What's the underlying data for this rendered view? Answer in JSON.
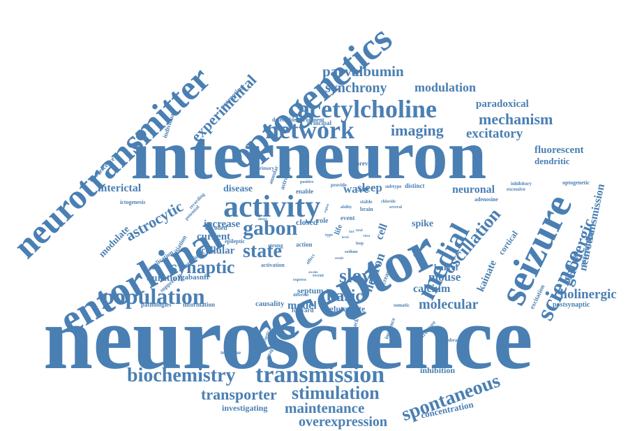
{
  "cloud": {
    "word_color": "#4a7fb3",
    "background": "#ffffff",
    "words": [
      "neuroscience",
      "interneuron",
      "receptor",
      "neurotransmitter",
      "optogenetics",
      "entorhinal",
      "activity",
      "seizure",
      "network",
      "acetylcholine",
      "population",
      "transmission",
      "medial",
      "science",
      "synaptic",
      "gabon",
      "biochemistry",
      "spontaneous",
      "slow",
      "transporter",
      "stimulation",
      "state",
      "oscillation",
      "synchrony",
      "parvalbumin",
      "modulation",
      "mechanism",
      "imaging",
      "excitatory",
      "experimental",
      "interictal",
      "astrocytic",
      "basic",
      "overexpression",
      "maintenance",
      "neurotransmission",
      "gabaergic",
      "cholinergic",
      "molecular",
      "calcium",
      "mouse",
      "modulate",
      "neuronal",
      "fluorescent",
      "dendritic",
      "paradoxical",
      "kainate",
      "duration",
      "increase",
      "current",
      "disease",
      "cellular",
      "model",
      "sleep",
      "wave",
      "neuron",
      "cell",
      "concentration",
      "investigating",
      "inhibition",
      "septum",
      "barrel",
      "glutamate",
      "causality",
      "closed",
      "spike",
      "cortical",
      "assemblies",
      "igabasnfr",
      "postsynaptic",
      "excitation",
      "information",
      "pathologies",
      "suppress",
      "fluorescence",
      "individual",
      "promoting",
      "ictogenesis",
      "recording",
      "potential",
      "application",
      "initiation",
      "function",
      "encoded",
      "epileptic",
      "primary",
      "annular",
      "astrocyte",
      "prevent",
      "distinct",
      "subtype",
      "provide",
      "enable",
      "positive",
      "adenosine",
      "excessive",
      "inhibitory",
      "optogenetic",
      "principal",
      "recruitment",
      "detectable",
      "chloride",
      "several",
      "feedback",
      "incidence",
      "structure",
      "somatic",
      "membrane",
      "technique",
      "neocortical",
      "antagonist",
      "forward",
      "different",
      "express",
      "recent",
      "activation",
      "strong",
      "action",
      "role",
      "life",
      "event",
      "sensor",
      "decrease",
      "effect",
      "type",
      "ability",
      "brain",
      "stable",
      "loop",
      "sodium",
      "report",
      "result",
      "awake",
      "region",
      "fast",
      "vitro",
      "total",
      "level",
      "detect"
    ]
  }
}
